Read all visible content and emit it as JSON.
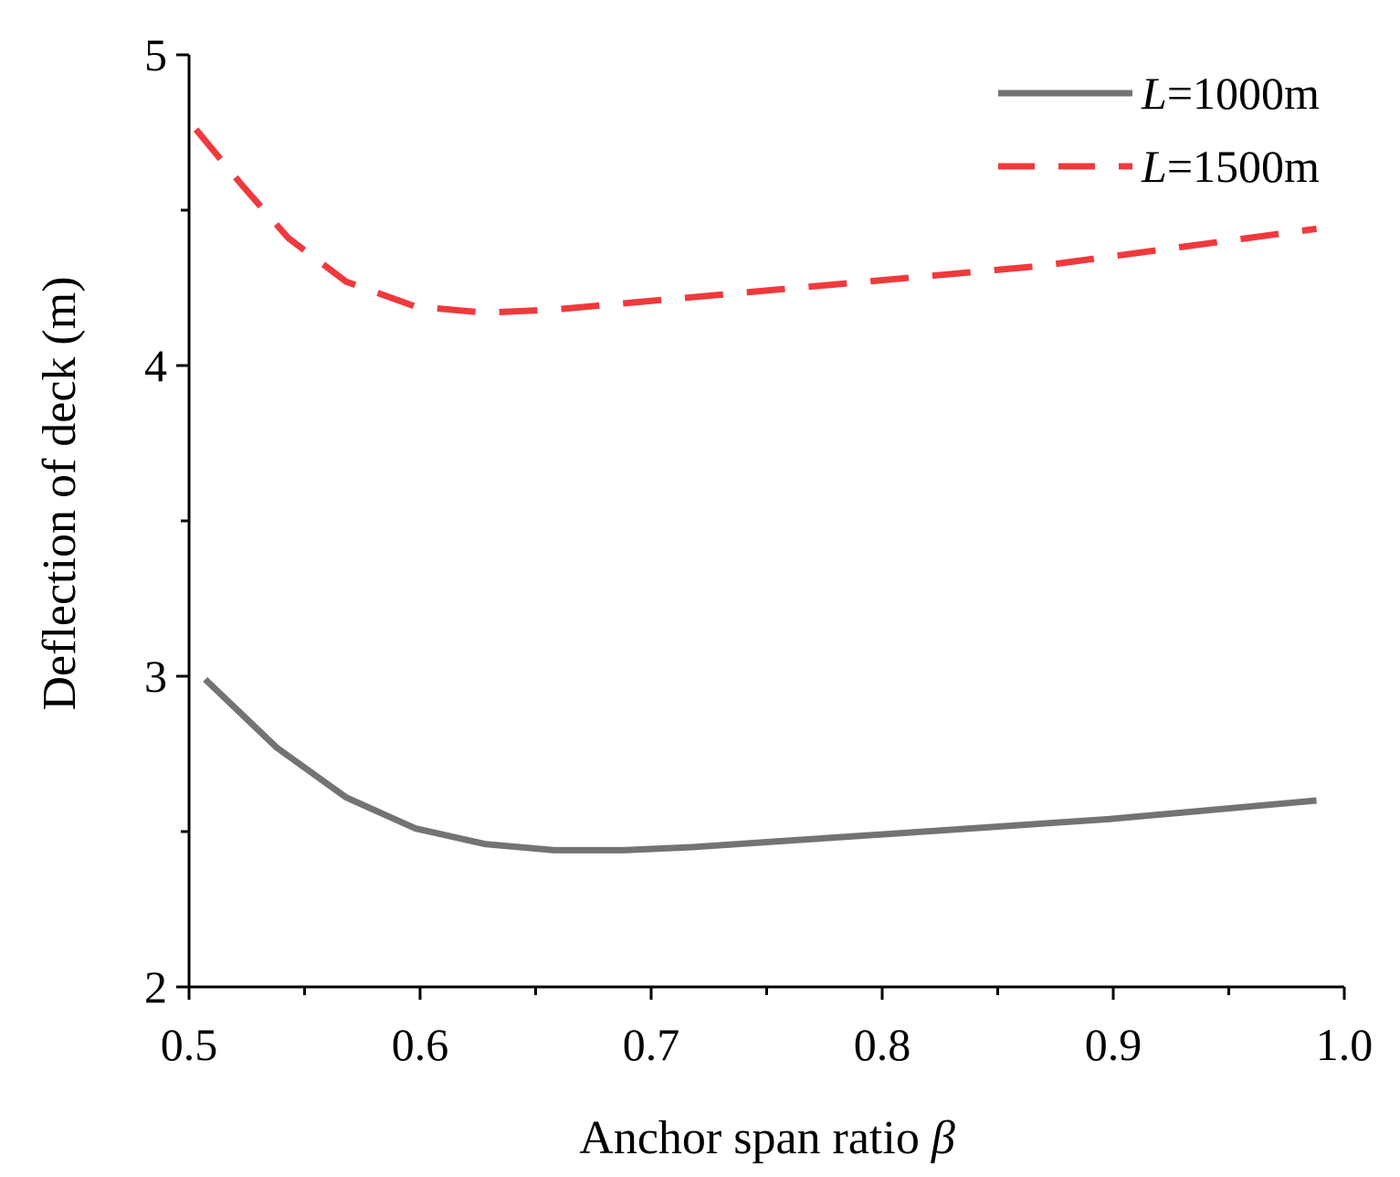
{
  "chart_data": {
    "type": "line",
    "xlabel_text": "Anchor span ratio ",
    "xlabel_symbol": "β",
    "ylabel": "Deflection of deck (m)",
    "xlim": [
      0.5,
      1.0
    ],
    "ylim": [
      2,
      5
    ],
    "xticks": [
      0.5,
      0.6,
      0.7,
      0.8,
      0.9,
      1.0
    ],
    "xtick_labels": [
      "0.5",
      "0.6",
      "0.7",
      "0.8",
      "0.9",
      "1.0"
    ],
    "yticks": [
      2,
      3,
      4,
      5
    ],
    "ytick_labels": [
      "2",
      "3",
      "4",
      "5"
    ],
    "grid": false,
    "legend_position": "top-right",
    "series": [
      {
        "name": "L=1000m",
        "name_prefix": "L",
        "name_suffix": "=1000m",
        "color": "#737373",
        "style": "solid",
        "x": [
          0.507,
          0.538,
          0.568,
          0.598,
          0.628,
          0.658,
          0.688,
          0.718,
          0.748,
          0.778,
          0.808,
          0.838,
          0.868,
          0.898,
          0.928,
          0.958,
          0.988
        ],
        "y": [
          2.99,
          2.77,
          2.61,
          2.51,
          2.46,
          2.44,
          2.44,
          2.45,
          2.465,
          2.48,
          2.495,
          2.51,
          2.525,
          2.54,
          2.56,
          2.58,
          2.6
        ]
      },
      {
        "name": "L=1500m",
        "name_prefix": "L",
        "name_suffix": "=1500m",
        "color": "#f0393c",
        "style": "dashed",
        "x": [
          0.503,
          0.523,
          0.543,
          0.568,
          0.598,
          0.628,
          0.658,
          0.688,
          0.718,
          0.748,
          0.778,
          0.808,
          0.838,
          0.868,
          0.898,
          0.928,
          0.958,
          0.988
        ],
        "y": [
          4.76,
          4.58,
          4.41,
          4.27,
          4.19,
          4.17,
          4.18,
          4.2,
          4.22,
          4.24,
          4.26,
          4.28,
          4.3,
          4.32,
          4.35,
          4.38,
          4.41,
          4.44
        ]
      }
    ]
  }
}
